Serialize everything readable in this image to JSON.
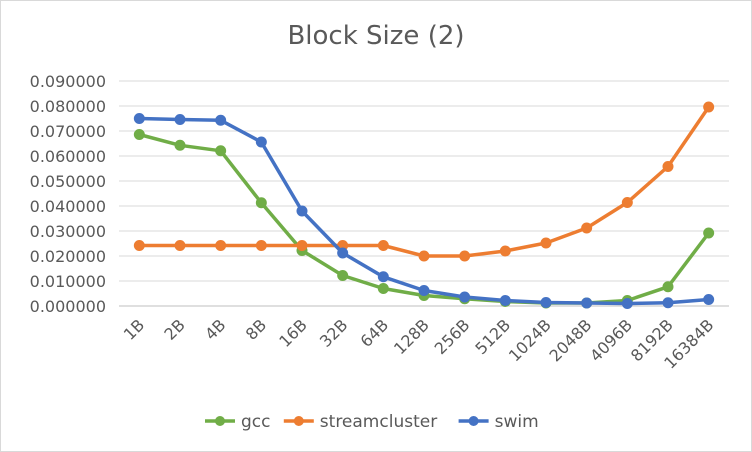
{
  "chart_data": {
    "type": "line",
    "title": "Block Size (2)",
    "xlabel": "",
    "ylabel": "",
    "categories": [
      "1B",
      "2B",
      "4B",
      "8B",
      "16B",
      "32B",
      "64B",
      "128B",
      "256B",
      "512B",
      "1024B",
      "2048B",
      "4096B",
      "8192B",
      "16384B"
    ],
    "ylim": [
      0,
      0.09
    ],
    "yticks": [
      0,
      0.01,
      0.02,
      0.03,
      0.04,
      0.05,
      0.06,
      0.07,
      0.08,
      0.09
    ],
    "ytick_labels": [
      "0.000000",
      "0.010000",
      "0.020000",
      "0.030000",
      "0.040000",
      "0.050000",
      "0.060000",
      "0.070000",
      "0.080000",
      "0.090000"
    ],
    "grid": true,
    "legend_position": "bottom",
    "series": [
      {
        "name": "gcc",
        "color": "#70ad47",
        "values": [
          0.0686,
          0.0643,
          0.0621,
          0.0413,
          0.0222,
          0.0122,
          0.007,
          0.0042,
          0.0029,
          0.0018,
          0.0012,
          0.0012,
          0.0022,
          0.0077,
          0.0292
        ]
      },
      {
        "name": "streamcluster",
        "color": "#ed7d31",
        "values": [
          0.0242,
          0.0242,
          0.0242,
          0.0242,
          0.0242,
          0.0242,
          0.0242,
          0.02,
          0.02,
          0.022,
          0.0252,
          0.0312,
          0.0414,
          0.0558,
          0.0796
        ]
      },
      {
        "name": "swim",
        "color": "#4472c4",
        "values": [
          0.075,
          0.0746,
          0.0743,
          0.0656,
          0.038,
          0.0212,
          0.0117,
          0.0062,
          0.0036,
          0.0022,
          0.0014,
          0.0012,
          0.001,
          0.0013,
          0.0026
        ]
      }
    ]
  }
}
